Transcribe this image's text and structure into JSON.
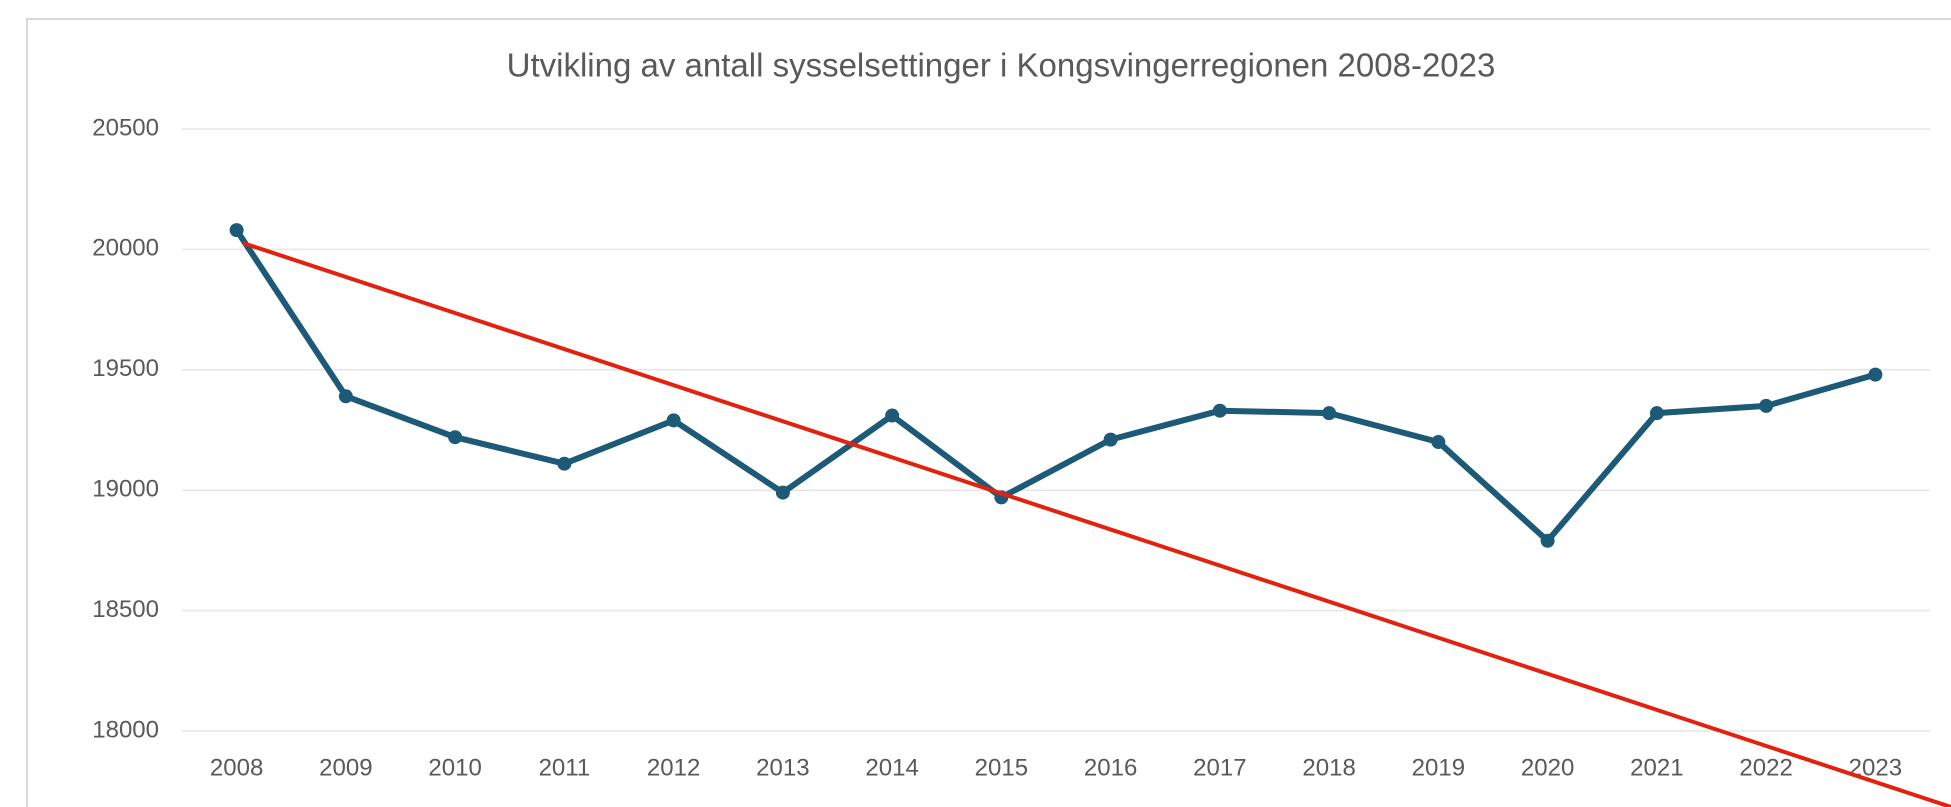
{
  "chart_data": {
    "type": "line",
    "title": "Utvikling av antall sysselsettinger i Kongsvingerregionen 2008-2023",
    "categories": [
      "2008",
      "2009",
      "2010",
      "2011",
      "2012",
      "2013",
      "2014",
      "2015",
      "2016",
      "2017",
      "2018",
      "2019",
      "2020",
      "2021",
      "2022",
      "2023"
    ],
    "values": [
      20080,
      19390,
      19220,
      19110,
      19290,
      18990,
      19310,
      18970,
      19210,
      19330,
      19320,
      19200,
      18790,
      19320,
      19350,
      19480
    ],
    "color": "#1c5a78",
    "ylim": [
      18000,
      20500
    ],
    "yticks": [
      18000,
      18500,
      19000,
      19500,
      20000,
      20500
    ],
    "grid": true
  }
}
